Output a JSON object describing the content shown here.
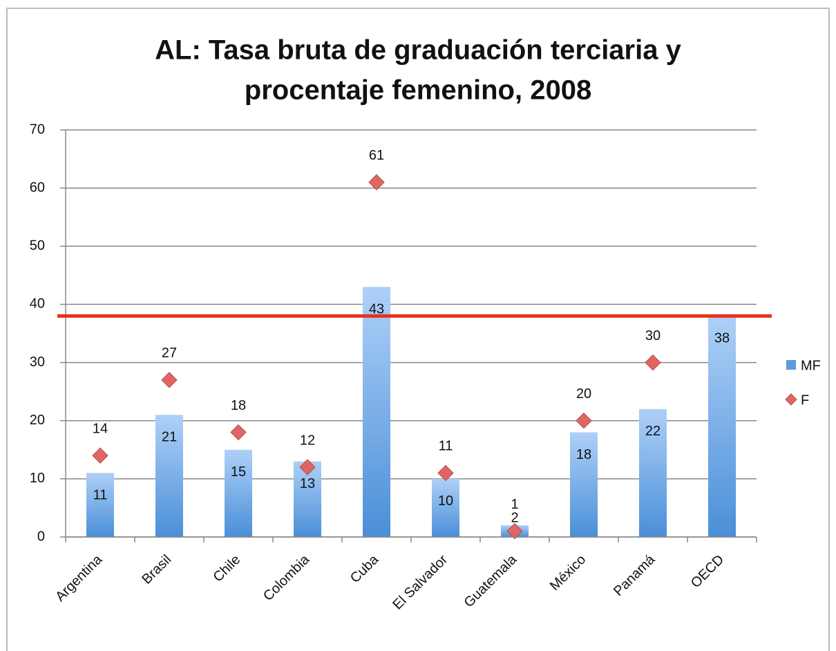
{
  "chart_data": {
    "type": "bar",
    "title": [
      "AL: Tasa bruta de graduación terciaria y",
      "procentaje femenino, 2008"
    ],
    "categories": [
      "Argentina",
      "Brasil",
      "Chile",
      "Colombia",
      "Cuba",
      "El Salvador",
      "Guatemala",
      "México",
      "Panamá",
      "OECD"
    ],
    "series": [
      {
        "name": "MF",
        "type": "bar",
        "color": "#5b9be0",
        "values": [
          11,
          21,
          15,
          13,
          43,
          10,
          2,
          18,
          22,
          38
        ]
      },
      {
        "name": "F",
        "type": "scatter",
        "color": "#e06666",
        "values": [
          14,
          27,
          18,
          12,
          61,
          11,
          1,
          20,
          30,
          null
        ]
      }
    ],
    "reference_line": {
      "value": 38,
      "color": "#e8301c"
    },
    "ylim": [
      0,
      70
    ],
    "yticks": [
      0,
      10,
      20,
      30,
      40,
      50,
      60,
      70
    ],
    "grid": true,
    "legend": "right"
  }
}
